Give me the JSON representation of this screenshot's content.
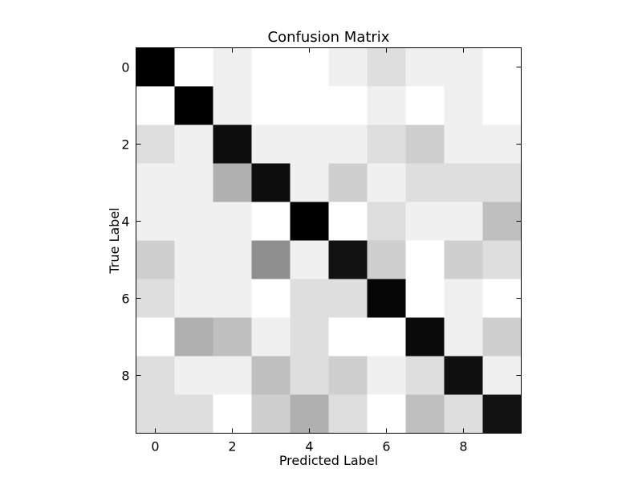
{
  "chart_data": {
    "type": "heatmap",
    "title": "Confusion Matrix",
    "xlabel": "Predicted Label",
    "ylabel": "True Label",
    "colormap": "grayscale (white = low, black = high)",
    "rows": [
      0,
      1,
      2,
      3,
      4,
      5,
      6,
      7,
      8,
      9
    ],
    "cols": [
      0,
      1,
      2,
      3,
      4,
      5,
      6,
      7,
      8,
      9
    ],
    "xticks": [
      "0",
      "2",
      "4",
      "6",
      "8"
    ],
    "yticks": [
      "0",
      "2",
      "4",
      "6",
      "8"
    ],
    "values": [
      [
        1.0,
        0.0,
        0.06,
        0.0,
        0.0,
        0.06,
        0.13,
        0.06,
        0.06,
        0.0
      ],
      [
        0.0,
        1.0,
        0.06,
        0.0,
        0.0,
        0.0,
        0.06,
        0.0,
        0.06,
        0.0
      ],
      [
        0.13,
        0.06,
        0.95,
        0.06,
        0.06,
        0.06,
        0.13,
        0.19,
        0.06,
        0.06
      ],
      [
        0.06,
        0.06,
        0.31,
        0.95,
        0.06,
        0.19,
        0.06,
        0.13,
        0.13,
        0.13
      ],
      [
        0.06,
        0.06,
        0.06,
        0.0,
        1.0,
        0.0,
        0.13,
        0.06,
        0.06,
        0.25
      ],
      [
        0.19,
        0.06,
        0.06,
        0.44,
        0.06,
        0.93,
        0.19,
        0.0,
        0.19,
        0.13
      ],
      [
        0.13,
        0.06,
        0.06,
        0.0,
        0.13,
        0.13,
        0.98,
        0.0,
        0.06,
        0.0
      ],
      [
        0.0,
        0.31,
        0.25,
        0.06,
        0.13,
        0.0,
        0.0,
        0.96,
        0.06,
        0.19
      ],
      [
        0.13,
        0.06,
        0.06,
        0.25,
        0.13,
        0.19,
        0.06,
        0.13,
        0.94,
        0.06
      ],
      [
        0.13,
        0.13,
        0.0,
        0.19,
        0.31,
        0.13,
        0.0,
        0.25,
        0.13,
        0.93
      ]
    ]
  }
}
